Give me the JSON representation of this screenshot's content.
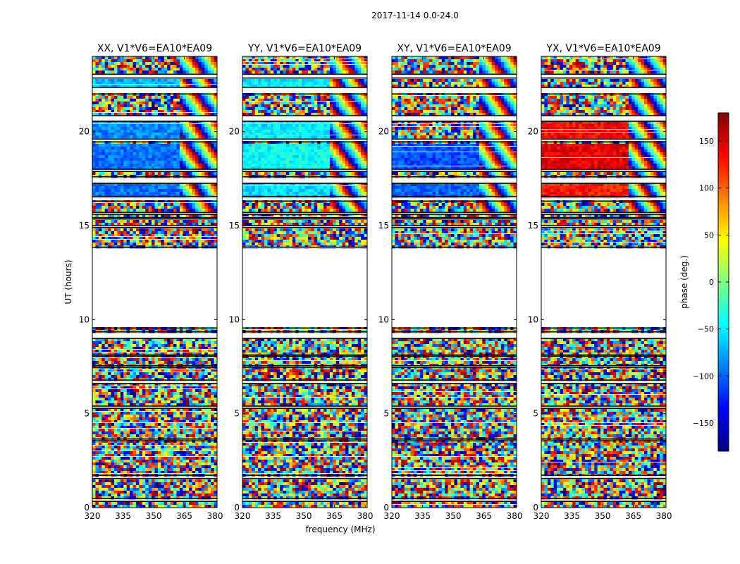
{
  "figure": {
    "suptitle": "2017-11-14 0.0-24.0",
    "xlabel": "frequency (MHz)",
    "ylabel": "UT (hours)"
  },
  "colorbar": {
    "label": "phase (deg.)",
    "range": [
      -180,
      180
    ],
    "ticks": [
      150,
      100,
      50,
      0,
      -50,
      -100,
      -150
    ],
    "tick_labels": [
      "150",
      "100",
      "50",
      "0",
      "−50",
      "−100",
      "−150"
    ],
    "colormap": "jet",
    "colors": [
      "#00007f",
      "#0000ff",
      "#007fff",
      "#00ffff",
      "#7fff7f",
      "#ffff00",
      "#ff7f00",
      "#ff0000",
      "#7f0000"
    ]
  },
  "chart_data": [
    {
      "type": "heatmap",
      "title": "XX, V1*V6=EA10*EA09",
      "xlim": [
        320,
        381
      ],
      "ylim": [
        0,
        24
      ],
      "xticks": [
        320,
        335,
        350,
        365,
        380
      ],
      "yticks": [
        0,
        5,
        10,
        15,
        20
      ],
      "z": "phase (deg.)"
    },
    {
      "type": "heatmap",
      "title": "YY, V1*V6=EA10*EA09",
      "xlim": [
        320,
        381
      ],
      "ylim": [
        0,
        24
      ],
      "xticks": [
        320,
        335,
        350,
        365,
        380
      ],
      "yticks": [
        0,
        5,
        10,
        15,
        20
      ],
      "z": "phase (deg.)"
    },
    {
      "type": "heatmap",
      "title": "XY, V1*V6=EA10*EA09",
      "xlim": [
        320,
        381
      ],
      "ylim": [
        0,
        24
      ],
      "xticks": [
        320,
        335,
        350,
        365,
        380
      ],
      "yticks": [
        0,
        5,
        10,
        15,
        20
      ],
      "z": "phase (deg.)"
    },
    {
      "type": "heatmap",
      "title": "YX, V1*V6=EA10*EA09",
      "xlim": [
        320,
        381
      ],
      "ylim": [
        0,
        24
      ],
      "xticks": [
        320,
        335,
        350,
        365,
        380
      ],
      "yticks": [
        0,
        5,
        10,
        15,
        20
      ],
      "z": "phase (deg.)"
    }
  ]
}
